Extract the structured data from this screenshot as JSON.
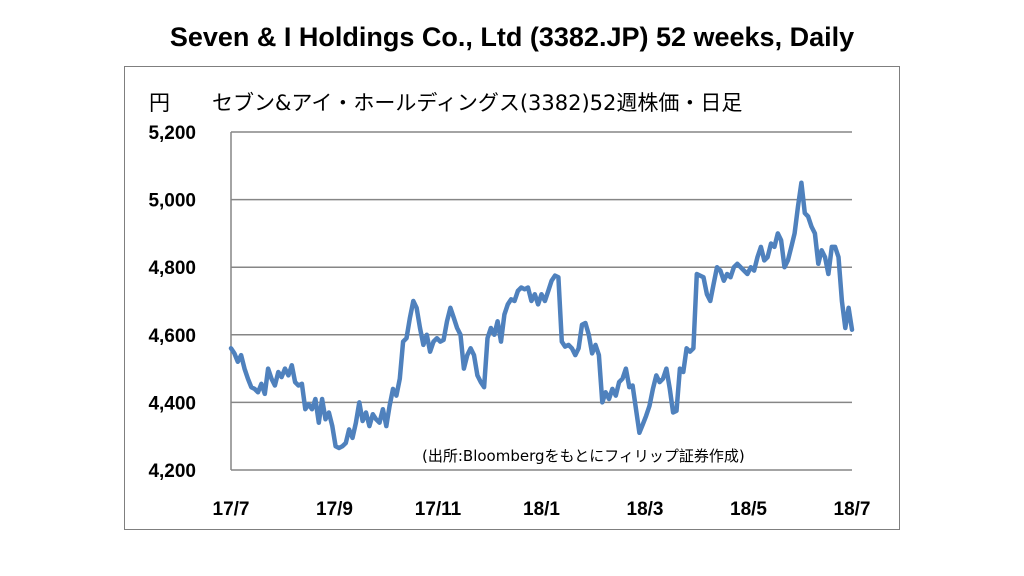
{
  "chart_data": {
    "type": "line",
    "title": "Seven & I Holdings Co., Ltd (3382.JP) 52 weeks, Daily",
    "subtitle": "セブン&アイ・ホールディングス(3382)52週株価・日足",
    "ylabel": "円",
    "source_note": "(出所:Bloombergをもとにフィリップ証券作成)",
    "ylim": [
      4200,
      5200
    ],
    "yticks": [
      4200,
      4400,
      4600,
      4800,
      5000,
      5200
    ],
    "ytick_labels": [
      "4,200",
      "4,400",
      "4,600",
      "4,800",
      "5,000",
      "5,200"
    ],
    "xticks": [
      "17/7",
      "17/9",
      "17/11",
      "18/1",
      "18/3",
      "18/5",
      "18/7"
    ],
    "grid": true,
    "line_color": "#4f81bd",
    "series": [
      {
        "values": [
          4560,
          4545,
          4520,
          4540,
          4500,
          4470,
          4445,
          4440,
          4430,
          4455,
          4425,
          4500,
          4470,
          4450,
          4490,
          4475,
          4500,
          4480,
          4510,
          4460,
          4450,
          4455,
          4380,
          4395,
          4380,
          4410,
          4340,
          4410,
          4350,
          4370,
          4330,
          4270,
          4265,
          4270,
          4280,
          4320,
          4295,
          4340,
          4400,
          4345,
          4370,
          4330,
          4365,
          4350,
          4340,
          4380,
          4330,
          4390,
          4440,
          4420,
          4470,
          4580,
          4590,
          4650,
          4700,
          4680,
          4620,
          4570,
          4600,
          4550,
          4580,
          4590,
          4580,
          4585,
          4640,
          4680,
          4650,
          4620,
          4600,
          4500,
          4540,
          4560,
          4540,
          4480,
          4460,
          4445,
          4590,
          4620,
          4600,
          4640,
          4580,
          4660,
          4690,
          4705,
          4700,
          4730,
          4740,
          4735,
          4740,
          4700,
          4720,
          4690,
          4720,
          4700,
          4730,
          4760,
          4775,
          4770,
          4580,
          4565,
          4570,
          4560,
          4540,
          4560,
          4630,
          4635,
          4600,
          4545,
          4570,
          4540,
          4400,
          4430,
          4410,
          4440,
          4420,
          4460,
          4470,
          4500,
          4445,
          4450,
          4380,
          4310,
          4335,
          4360,
          4390,
          4440,
          4480,
          4460,
          4470,
          4500,
          4440,
          4370,
          4375,
          4500,
          4490,
          4560,
          4550,
          4560,
          4780,
          4775,
          4770,
          4720,
          4700,
          4750,
          4800,
          4790,
          4760,
          4780,
          4770,
          4800,
          4810,
          4800,
          4790,
          4780,
          4800,
          4790,
          4830,
          4860,
          4820,
          4830,
          4870,
          4860,
          4900,
          4880,
          4800,
          4820,
          4860,
          4900,
          4980,
          5050,
          4960,
          4950,
          4920,
          4900,
          4810,
          4850,
          4830,
          4780,
          4860,
          4860,
          4830,
          4700,
          4620,
          4680,
          4615
        ]
      }
    ]
  }
}
